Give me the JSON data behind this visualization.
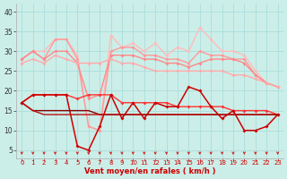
{
  "xlabel": "Vent moyen/en rafales ( km/h )",
  "xlim": [
    -0.5,
    23.5
  ],
  "ylim": [
    3,
    42
  ],
  "yticks": [
    5,
    10,
    15,
    20,
    25,
    30,
    35,
    40
  ],
  "xticks": [
    0,
    1,
    2,
    3,
    4,
    5,
    6,
    7,
    8,
    9,
    10,
    11,
    12,
    13,
    14,
    15,
    16,
    17,
    18,
    19,
    20,
    21,
    22,
    23
  ],
  "bg_color": "#cceee8",
  "grid_color": "#aadddd",
  "series": [
    {
      "color": "#ffbbbb",
      "linewidth": 1.0,
      "marker": "D",
      "markersize": 2.0,
      "y": [
        28,
        30,
        30,
        33,
        33,
        29,
        11,
        10,
        34,
        31,
        32,
        30,
        32,
        29,
        31,
        30,
        36,
        33,
        30,
        30,
        29,
        25,
        22,
        21
      ]
    },
    {
      "color": "#ff9999",
      "linewidth": 1.0,
      "marker": "D",
      "markersize": 2.0,
      "y": [
        28,
        30,
        28,
        33,
        33,
        28,
        11,
        10,
        30,
        31,
        31,
        29,
        29,
        28,
        28,
        27,
        30,
        29,
        29,
        28,
        28,
        24,
        22,
        21
      ]
    },
    {
      "color": "#ff8888",
      "linewidth": 1.0,
      "marker": "D",
      "markersize": 2.0,
      "y": [
        28,
        30,
        28,
        30,
        30,
        27,
        18,
        19,
        29,
        29,
        29,
        28,
        28,
        27,
        27,
        26,
        27,
        28,
        28,
        28,
        27,
        24,
        22,
        21
      ]
    },
    {
      "color": "#ffaaaa",
      "linewidth": 1.0,
      "marker": "D",
      "markersize": 2.0,
      "y": [
        27,
        28,
        27,
        29,
        28,
        27,
        27,
        27,
        28,
        27,
        27,
        26,
        25,
        25,
        25,
        25,
        25,
        25,
        25,
        24,
        24,
        23,
        22,
        21
      ]
    },
    {
      "color": "#ff3333",
      "linewidth": 1.0,
      "marker": "D",
      "markersize": 2.0,
      "y": [
        17,
        19,
        19,
        19,
        19,
        18,
        19,
        19,
        19,
        17,
        17,
        17,
        17,
        17,
        16,
        16,
        16,
        16,
        16,
        15,
        15,
        15,
        15,
        14
      ]
    },
    {
      "color": "#cc0000",
      "linewidth": 1.1,
      "marker": "D",
      "markersize": 2.0,
      "y": [
        17,
        19,
        19,
        19,
        19,
        6,
        5,
        11,
        19,
        13,
        17,
        13,
        17,
        16,
        16,
        21,
        20,
        16,
        13,
        15,
        10,
        10,
        11,
        14
      ]
    },
    {
      "color": "#880000",
      "linewidth": 1.0,
      "marker": null,
      "y": [
        17,
        15,
        15,
        15,
        15,
        15,
        15,
        14,
        14,
        14,
        14,
        14,
        14,
        14,
        14,
        14,
        14,
        14,
        14,
        14,
        14,
        14,
        14,
        14
      ]
    },
    {
      "color": "#bb1111",
      "linewidth": 1.0,
      "marker": null,
      "y": [
        17,
        15,
        14,
        14,
        14,
        14,
        14,
        14,
        14,
        14,
        14,
        14,
        14,
        14,
        14,
        14,
        14,
        14,
        14,
        14,
        14,
        14,
        14,
        14
      ]
    }
  ],
  "arrows_color": "#cc2222"
}
